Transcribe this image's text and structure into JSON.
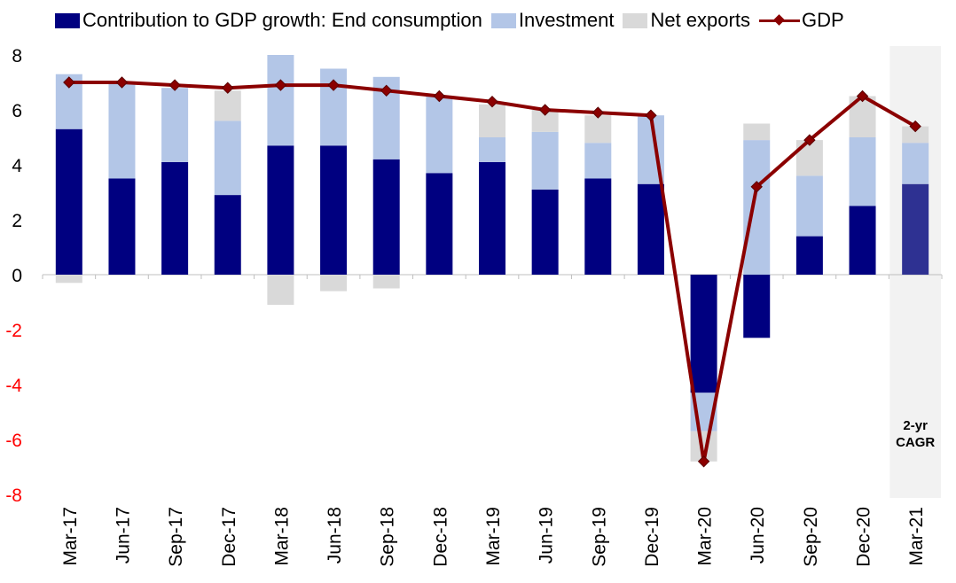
{
  "chart_data": {
    "type": "bar",
    "stacked": true,
    "categories": [
      "Mar-17",
      "Jun-17",
      "Sep-17",
      "Dec-17",
      "Mar-18",
      "Jun-18",
      "Sep-18",
      "Dec-18",
      "Mar-19",
      "Jun-19",
      "Sep-19",
      "Dec-19",
      "Mar-20",
      "Jun-20",
      "Sep-20",
      "Dec-20",
      "Mar-21"
    ],
    "series": [
      {
        "name": "Contribution to GDP growth: End consumption",
        "kind": "bar",
        "color": "#000080",
        "values": [
          5.3,
          3.5,
          4.1,
          2.9,
          4.7,
          4.7,
          4.2,
          3.7,
          4.1,
          3.1,
          3.5,
          3.3,
          -4.3,
          -2.3,
          1.4,
          2.5,
          3.3
        ]
      },
      {
        "name": "Investment",
        "kind": "bar",
        "color": "#B3C6E7",
        "values": [
          2.0,
          3.5,
          2.7,
          2.7,
          3.3,
          2.8,
          3.0,
          2.8,
          0.9,
          2.1,
          1.3,
          2.5,
          -1.4,
          4.9,
          2.2,
          2.5,
          1.5
        ]
      },
      {
        "name": "Net exports",
        "kind": "bar",
        "color": "#D9D9D9",
        "values": [
          -0.3,
          0.0,
          0.0,
          1.1,
          -1.1,
          -0.6,
          -0.5,
          0.0,
          1.2,
          0.8,
          1.0,
          0.0,
          -1.1,
          0.6,
          1.3,
          1.5,
          0.6
        ]
      },
      {
        "name": "GDP",
        "kind": "line",
        "color": "#8B0000",
        "values": [
          7.0,
          7.0,
          6.9,
          6.8,
          6.9,
          6.9,
          6.7,
          6.5,
          6.3,
          6.0,
          5.9,
          5.8,
          -6.8,
          3.2,
          4.9,
          6.5,
          5.4
        ]
      }
    ],
    "highlight_last_color": "#2E3192",
    "ylim": [
      -8,
      8
    ],
    "yticks": [
      -8,
      -6,
      -4,
      -2,
      0,
      2,
      4,
      6,
      8
    ],
    "negative_tick_color": "#FF0000",
    "annotation": {
      "line1": "2-yr",
      "line2": "CAGR",
      "category": "Mar-21"
    },
    "shade_color": "#F2F2F2",
    "legend_position": "top",
    "xlabel": "",
    "ylabel": "",
    "title": ""
  },
  "legend": {
    "end_consumption": "Contribution to GDP growth: End consumption",
    "investment": "Investment",
    "net_exports": "Net exports",
    "gdp": "GDP"
  }
}
